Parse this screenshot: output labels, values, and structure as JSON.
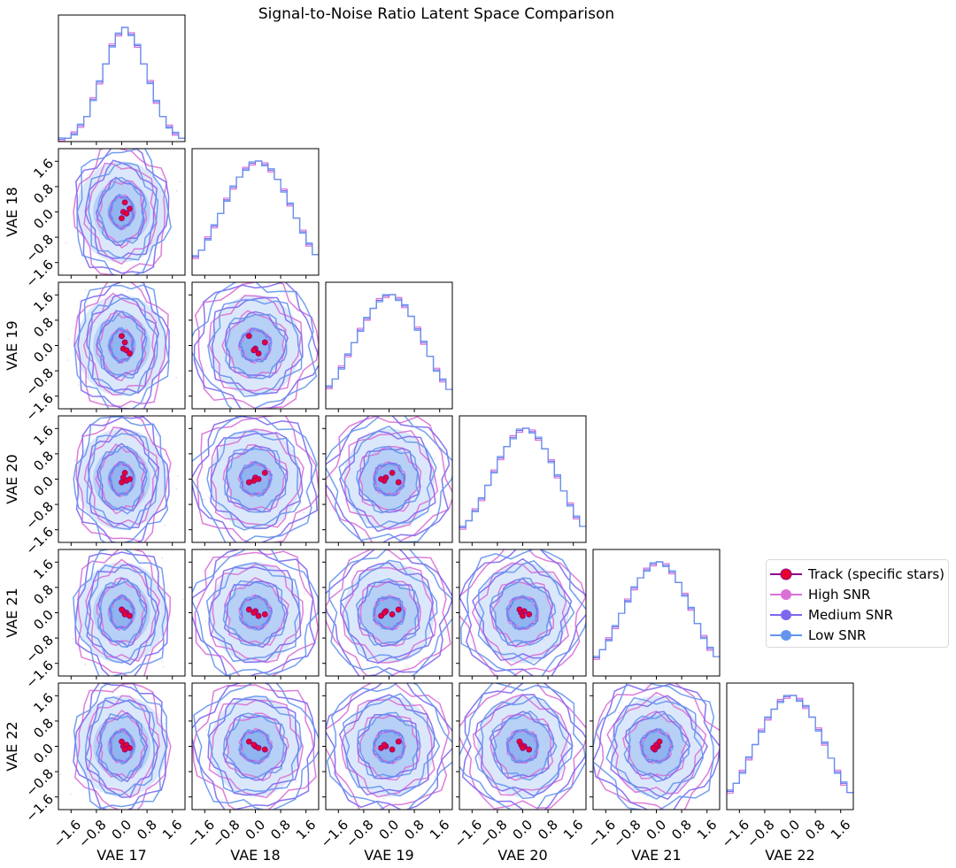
{
  "chart_data": {
    "type": "corner",
    "title": "Signal-to-Noise Ratio Latent Space Comparison",
    "variables": [
      "VAE 17",
      "VAE 18",
      "VAE 19",
      "VAE 20",
      "VAE 21",
      "VAE 22"
    ],
    "axis_range": [
      -2.0,
      2.0
    ],
    "ticks": [
      -1.6,
      -0.8,
      0.0,
      0.8,
      1.6
    ],
    "tick_labels": [
      "−1.6",
      "−0.8",
      "0.0",
      "0.8",
      "1.6"
    ],
    "contour_levels": [
      0.5,
      1.0,
      1.5,
      2.0
    ],
    "histogram_bins": [
      -2.0,
      -1.8,
      -1.6,
      -1.4,
      -1.2,
      -1.0,
      -0.8,
      -0.6,
      -0.4,
      -0.2,
      0.0,
      0.2,
      0.4,
      0.6,
      0.8,
      1.0,
      1.2,
      1.4,
      1.6,
      1.8,
      2.0
    ],
    "histogram_relative_heights": {
      "VAE 17": [
        0.02,
        0.03,
        0.07,
        0.14,
        0.22,
        0.37,
        0.52,
        0.68,
        0.84,
        0.94,
        1.0,
        0.94,
        0.84,
        0.68,
        0.52,
        0.35,
        0.22,
        0.13,
        0.07,
        0.03
      ],
      "VAE 18": [
        0.16,
        0.22,
        0.32,
        0.43,
        0.54,
        0.66,
        0.77,
        0.86,
        0.93,
        0.98,
        1.0,
        0.97,
        0.92,
        0.84,
        0.74,
        0.62,
        0.5,
        0.38,
        0.27,
        0.18
      ],
      "VAE 19": [
        0.19,
        0.26,
        0.36,
        0.47,
        0.58,
        0.69,
        0.79,
        0.88,
        0.95,
        0.99,
        1.0,
        0.96,
        0.9,
        0.81,
        0.7,
        0.58,
        0.46,
        0.34,
        0.25,
        0.17
      ],
      "VAE 20": [
        0.13,
        0.19,
        0.28,
        0.38,
        0.5,
        0.62,
        0.74,
        0.84,
        0.92,
        0.98,
        1.0,
        0.97,
        0.91,
        0.82,
        0.71,
        0.58,
        0.45,
        0.33,
        0.22,
        0.14
      ],
      "VAE 21": [
        0.16,
        0.23,
        0.32,
        0.43,
        0.55,
        0.66,
        0.77,
        0.86,
        0.93,
        0.98,
        1.0,
        0.97,
        0.91,
        0.82,
        0.71,
        0.59,
        0.46,
        0.34,
        0.24,
        0.17
      ],
      "VAE 22": [
        0.16,
        0.23,
        0.33,
        0.45,
        0.57,
        0.69,
        0.8,
        0.88,
        0.95,
        0.99,
        1.0,
        0.96,
        0.9,
        0.81,
        0.7,
        0.58,
        0.45,
        0.33,
        0.23,
        0.15
      ]
    },
    "series": [
      {
        "name": "Track (specific stars)",
        "color": "#e8002d",
        "edge_color": "#8b008b"
      },
      {
        "name": "High SNR",
        "color": "#da70d6"
      },
      {
        "name": "Medium SNR",
        "color": "#7b68ee"
      },
      {
        "name": "Low SNR",
        "color": "#6495ed"
      }
    ],
    "track_points": [
      {
        "VAE 17": 0.05,
        "VAE 18": 0.0,
        "VAE 19": -0.1,
        "VAE 20": 0.05,
        "VAE 21": 0.05,
        "VAE 22": 0.0
      },
      {
        "VAE 17": 0.15,
        "VAE 18": -0.05,
        "VAE 19": -0.15,
        "VAE 20": -0.05,
        "VAE 21": 0.0,
        "VAE 22": 0.05
      },
      {
        "VAE 17": 0.1,
        "VAE 18": 0.3,
        "VAE 19": 0.1,
        "VAE 20": 0.2,
        "VAE 21": -0.05,
        "VAE 22": -0.1
      },
      {
        "VAE 17": 0.0,
        "VAE 18": -0.2,
        "VAE 19": 0.3,
        "VAE 20": -0.1,
        "VAE 21": 0.1,
        "VAE 22": 0.15
      },
      {
        "VAE 17": 0.25,
        "VAE 18": 0.1,
        "VAE 19": -0.25,
        "VAE 20": 0.0,
        "VAE 21": -0.1,
        "VAE 22": -0.05
      }
    ],
    "legend_position": "center-right",
    "grid": false
  }
}
